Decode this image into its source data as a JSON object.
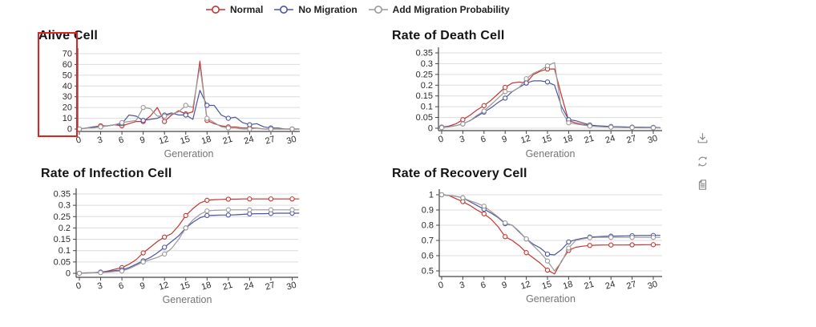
{
  "page": {
    "background": "#ffffff"
  },
  "legend": {
    "items": [
      {
        "label": "Normal",
        "color": "#c5342f"
      },
      {
        "label": "No Migration",
        "color": "#4d55a2"
      },
      {
        "label": "Add Migration Probability",
        "color": "#9a9a9a"
      }
    ]
  },
  "annotation": {
    "type": "highlight-box",
    "color": "#e02420",
    "target": "alive-cell-y-axis"
  },
  "toolbar": {
    "icons": [
      {
        "name": "download-icon"
      },
      {
        "name": "refresh-icon"
      },
      {
        "name": "document-icon"
      }
    ]
  },
  "chart_data": [
    {
      "type": "line",
      "title": "Alive Cell",
      "xlabel": "Generation",
      "ylabel": "",
      "xlim": [
        0,
        31
      ],
      "ylim": [
        0,
        70
      ],
      "x_tick_values": [
        0,
        3,
        6,
        9,
        12,
        15,
        18,
        21,
        24,
        27,
        30
      ],
      "x_tick_labels": [
        "0",
        "3",
        "6",
        "9",
        "12",
        "15",
        "18",
        "21",
        "24",
        "27",
        "30"
      ],
      "y_tick_values": [
        0,
        10,
        20,
        30,
        40,
        50,
        60,
        70
      ],
      "y_tick_labels": [
        "0",
        "10",
        "20",
        "30",
        "40",
        "50",
        "60",
        "70"
      ],
      "grid": true,
      "series": [
        {
          "name": "Normal",
          "color": "#c5342f",
          "values": [
            0,
            1,
            2,
            3,
            3,
            4,
            3,
            5,
            7,
            7,
            12,
            20,
            7,
            13,
            17,
            14,
            16,
            63,
            8,
            5,
            3,
            2,
            2,
            1,
            1,
            1,
            0,
            0,
            0,
            0,
            0,
            0
          ]
        },
        {
          "name": "No Migration",
          "color": "#4d55a2",
          "values": [
            0,
            1,
            2,
            2,
            3,
            4,
            5,
            13,
            12,
            8,
            9,
            10,
            13,
            15,
            13,
            13,
            9,
            36,
            22,
            22,
            13,
            10,
            11,
            6,
            4,
            5,
            2,
            1,
            1,
            0,
            0,
            0
          ]
        },
        {
          "name": "Add Migration Probability",
          "color": "#9a9a9a",
          "values": [
            0,
            1,
            1,
            2,
            3,
            4,
            6,
            7,
            8,
            20,
            19,
            12,
            12,
            14,
            16,
            22,
            20,
            58,
            10,
            6,
            2,
            1,
            1,
            0,
            0,
            1,
            0,
            0,
            0,
            0,
            0,
            0
          ]
        }
      ]
    },
    {
      "type": "line",
      "title": "Rate of Death Cell",
      "xlabel": "Generation",
      "ylabel": "",
      "xlim": [
        0,
        31
      ],
      "ylim": [
        0,
        0.35
      ],
      "x_tick_values": [
        0,
        3,
        6,
        9,
        12,
        15,
        18,
        21,
        24,
        27,
        30
      ],
      "x_tick_labels": [
        "0",
        "3",
        "6",
        "9",
        "12",
        "15",
        "18",
        "21",
        "24",
        "27",
        "30"
      ],
      "y_tick_values": [
        0,
        0.05,
        0.1,
        0.15,
        0.2,
        0.25,
        0.3,
        0.35
      ],
      "y_tick_labels": [
        "0",
        "0.05",
        "0.1",
        "0.15",
        "0.2",
        "0.25",
        "0.3",
        "0.35"
      ],
      "grid": true,
      "series": [
        {
          "name": "Normal",
          "color": "#c5342f",
          "values": [
            0.005,
            0.01,
            0.02,
            0.04,
            0.06,
            0.085,
            0.105,
            0.13,
            0.16,
            0.19,
            0.21,
            0.215,
            0.21,
            0.25,
            0.265,
            0.275,
            0.275,
            0.15,
            0.035,
            0.025,
            0.018,
            0.012,
            0.01,
            0.008,
            0.006,
            0.005,
            0.004,
            0.004,
            0.003,
            0.003,
            0.003,
            0.002
          ]
        },
        {
          "name": "No Migration",
          "color": "#4d55a2",
          "values": [
            0.005,
            0.008,
            0.012,
            0.02,
            0.035,
            0.055,
            0.075,
            0.095,
            0.12,
            0.14,
            0.17,
            0.19,
            0.21,
            0.22,
            0.22,
            0.215,
            0.2,
            0.1,
            0.04,
            0.035,
            0.025,
            0.015,
            0.012,
            0.01,
            0.008,
            0.007,
            0.006,
            0.005,
            0.005,
            0.004,
            0.004,
            0.003
          ]
        },
        {
          "name": "Add Migration Probability",
          "color": "#9a9a9a",
          "values": [
            0.003,
            0.006,
            0.012,
            0.02,
            0.035,
            0.06,
            0.08,
            0.11,
            0.14,
            0.17,
            0.17,
            0.19,
            0.23,
            0.255,
            0.27,
            0.29,
            0.305,
            0.08,
            0.025,
            0.02,
            0.015,
            0.01,
            0.008,
            0.006,
            0.005,
            0.004,
            0.003,
            0.003,
            0.002,
            0.002,
            0.002,
            0.002
          ]
        }
      ]
    },
    {
      "type": "line",
      "title": "Rate of Infection Cell",
      "xlabel": "Generation",
      "ylabel": "",
      "xlim": [
        0,
        31
      ],
      "ylim": [
        0,
        0.35
      ],
      "x_tick_values": [
        0,
        3,
        6,
        9,
        12,
        15,
        18,
        21,
        24,
        27,
        30
      ],
      "x_tick_labels": [
        "0",
        "3",
        "6",
        "9",
        "12",
        "15",
        "18",
        "21",
        "24",
        "27",
        "30"
      ],
      "y_tick_values": [
        0,
        0.05,
        0.1,
        0.15,
        0.2,
        0.25,
        0.3,
        0.35
      ],
      "y_tick_labels": [
        "0",
        "0.05",
        "0.1",
        "0.15",
        "0.2",
        "0.25",
        "0.3",
        "0.35"
      ],
      "grid": true,
      "series": [
        {
          "name": "Normal",
          "color": "#c5342f",
          "values": [
            0,
            0.002,
            0.003,
            0.005,
            0.01,
            0.018,
            0.025,
            0.04,
            0.06,
            0.09,
            0.115,
            0.14,
            0.16,
            0.175,
            0.21,
            0.255,
            0.285,
            0.31,
            0.322,
            0.325,
            0.326,
            0.327,
            0.327,
            0.328,
            0.328,
            0.328,
            0.328,
            0.328,
            0.328,
            0.328,
            0.328,
            0.328
          ]
        },
        {
          "name": "No Migration",
          "color": "#4d55a2",
          "values": [
            0,
            0.001,
            0.002,
            0.005,
            0.008,
            0.012,
            0.015,
            0.025,
            0.04,
            0.055,
            0.07,
            0.09,
            0.115,
            0.14,
            0.165,
            0.2,
            0.225,
            0.245,
            0.255,
            0.256,
            0.257,
            0.257,
            0.258,
            0.26,
            0.262,
            0.263,
            0.263,
            0.264,
            0.265,
            0.265,
            0.265,
            0.265
          ]
        },
        {
          "name": "Add Migration Probability",
          "color": "#9a9a9a",
          "values": [
            0,
            0.001,
            0.002,
            0.003,
            0.005,
            0.008,
            0.01,
            0.02,
            0.035,
            0.05,
            0.06,
            0.07,
            0.085,
            0.11,
            0.15,
            0.2,
            0.235,
            0.26,
            0.275,
            0.278,
            0.279,
            0.28,
            0.28,
            0.28,
            0.28,
            0.28,
            0.28,
            0.28,
            0.28,
            0.28,
            0.28,
            0.28
          ]
        }
      ]
    },
    {
      "type": "line",
      "title": "Rate of Recovery Cell",
      "xlabel": "Generation",
      "ylabel": "",
      "xlim": [
        0,
        31
      ],
      "ylim": [
        0.5,
        1
      ],
      "x_tick_values": [
        0,
        3,
        6,
        9,
        12,
        15,
        18,
        21,
        24,
        27,
        30
      ],
      "x_tick_labels": [
        "0",
        "3",
        "6",
        "9",
        "12",
        "15",
        "18",
        "21",
        "24",
        "27",
        "30"
      ],
      "y_tick_values": [
        0.5,
        0.6,
        0.7,
        0.8,
        0.9,
        1
      ],
      "y_tick_labels": [
        "0.5",
        "0.6",
        "0.7",
        "0.8",
        "0.9",
        "1"
      ],
      "grid": true,
      "series": [
        {
          "name": "Normal",
          "color": "#c5342f",
          "values": [
            1,
            0.995,
            0.975,
            0.955,
            0.93,
            0.9,
            0.875,
            0.84,
            0.79,
            0.725,
            0.7,
            0.665,
            0.62,
            0.585,
            0.55,
            0.505,
            0.48,
            0.565,
            0.635,
            0.655,
            0.662,
            0.667,
            0.669,
            0.67,
            0.67,
            0.67,
            0.67,
            0.671,
            0.671,
            0.672,
            0.672,
            0.672
          ]
        },
        {
          "name": "No Migration",
          "color": "#4d55a2",
          "values": [
            1,
            0.995,
            0.99,
            0.98,
            0.955,
            0.93,
            0.905,
            0.88,
            0.85,
            0.81,
            0.8,
            0.755,
            0.71,
            0.675,
            0.65,
            0.61,
            0.605,
            0.64,
            0.69,
            0.705,
            0.715,
            0.722,
            0.725,
            0.727,
            0.728,
            0.729,
            0.73,
            0.731,
            0.732,
            0.732,
            0.733,
            0.733
          ]
        },
        {
          "name": "Add Migration Probability",
          "color": "#9a9a9a",
          "values": [
            1,
            0.995,
            0.99,
            0.98,
            0.96,
            0.945,
            0.925,
            0.89,
            0.855,
            0.815,
            0.8,
            0.76,
            0.71,
            0.665,
            0.62,
            0.565,
            0.5,
            0.56,
            0.65,
            0.7,
            0.71,
            0.718,
            0.72,
            0.72,
            0.72,
            0.72,
            0.72,
            0.72,
            0.72,
            0.72,
            0.72,
            0.72
          ]
        }
      ]
    }
  ]
}
